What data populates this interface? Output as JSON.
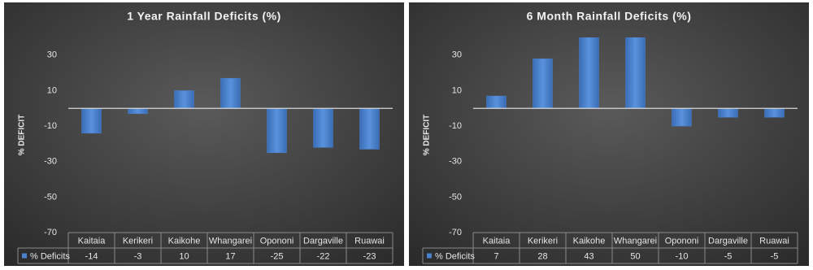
{
  "chart_data": [
    {
      "type": "bar",
      "title": "1 Year Rainfall Deficits (%)",
      "y_label": "% DEFICIT",
      "categories": [
        "Kaitaia",
        "Kerikeri",
        "Kaikohe",
        "Whangarei",
        "Opononi",
        "Dargaville",
        "Ruawai"
      ],
      "series": [
        {
          "name": "% Deficits",
          "color": "#4a80cc",
          "values": [
            -14,
            -3,
            10,
            17,
            -25,
            -22,
            -23
          ]
        }
      ],
      "ylim": [
        -70,
        40
      ],
      "yticks": [
        -70,
        -50,
        -30,
        -10,
        10,
        30
      ]
    },
    {
      "type": "bar",
      "title": "6 Month Rainfall Deficits (%)",
      "y_label": "% DEFICIT",
      "categories": [
        "Kaitaia",
        "Kerikeri",
        "Kaikohe",
        "Whangarei",
        "Opononi",
        "Dargaville",
        "Ruawai"
      ],
      "series": [
        {
          "name": "% Deficits",
          "color": "#4a80cc",
          "values": [
            7,
            28,
            43,
            50,
            -10,
            -5,
            -5
          ]
        }
      ],
      "ylim": [
        -70,
        40
      ],
      "yticks": [
        -70,
        -50,
        -30,
        -10,
        10,
        30
      ]
    }
  ]
}
